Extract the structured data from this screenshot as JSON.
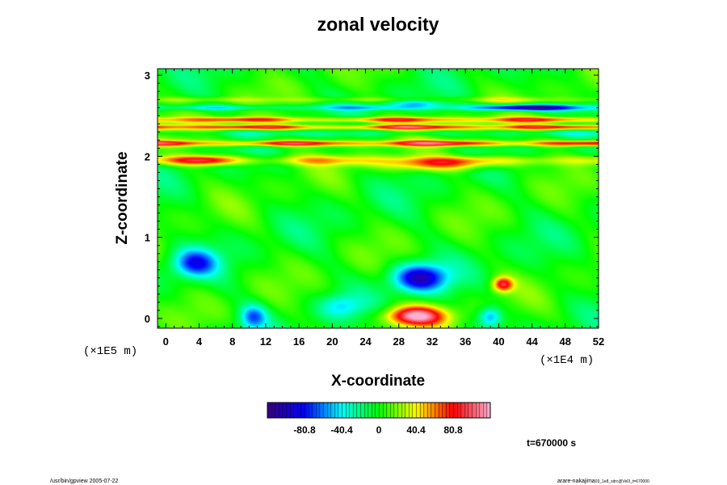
{
  "chart_data": {
    "type": "heatmap",
    "title": "zonal velocity",
    "xlabel": "X-coordinate",
    "ylabel": "Z-coordinate",
    "x_unit": "(×1E4 m)",
    "y_unit": "(×1E5 m)",
    "xlim": [
      -1,
      52
    ],
    "ylim": [
      -0.12,
      3.08
    ],
    "x_ticks": [
      0,
      4,
      8,
      12,
      16,
      20,
      24,
      28,
      32,
      36,
      40,
      44,
      48,
      52
    ],
    "y_ticks": [
      0,
      1,
      2,
      3
    ],
    "colorbar": {
      "range": [
        -121.2,
        121.2
      ],
      "ticks": [
        -80.8,
        -40.4,
        0,
        40.4,
        80.8
      ],
      "tick_labels": [
        "-80.8",
        "-40.4",
        "0",
        "40.4",
        "80.8"
      ]
    },
    "features": [
      {
        "kind": "blob",
        "x": 30,
        "z": 0.03,
        "rx": 3.5,
        "rz": 0.12,
        "value": 115
      },
      {
        "kind": "blob",
        "x": 30.5,
        "z": 0.5,
        "rx": 3.2,
        "rz": 0.17,
        "value": -95
      },
      {
        "kind": "blob",
        "x": 3.5,
        "z": 0.68,
        "rx": 2.6,
        "rz": 0.17,
        "value": -70
      },
      {
        "kind": "blob",
        "x": 10.5,
        "z": 0.02,
        "rx": 1.6,
        "rz": 0.15,
        "value": -60
      },
      {
        "kind": "blob",
        "x": 39,
        "z": 0.02,
        "rx": 1.4,
        "rz": 0.12,
        "value": -55
      },
      {
        "kind": "blob",
        "x": 40.5,
        "z": 0.42,
        "rx": 1.2,
        "rz": 0.09,
        "value": 85
      },
      {
        "kind": "blob",
        "x": 21,
        "z": 0.15,
        "rx": 2.5,
        "rz": 0.14,
        "value": -35
      },
      {
        "kind": "blob",
        "x": 44,
        "z": 2.6,
        "rx": 5.5,
        "rz": 0.04,
        "value": -90
      },
      {
        "kind": "blob",
        "x": 30,
        "z": 2.65,
        "rx": 3.5,
        "rz": 0.04,
        "value": -40
      },
      {
        "kind": "blob",
        "x": 33,
        "z": 1.9,
        "rx": 7,
        "rz": 0.08,
        "value": 55
      },
      {
        "kind": "blob",
        "x": 5,
        "z": 1.95,
        "rx": 4,
        "rz": 0.06,
        "value": 60
      }
    ],
    "bands": [
      {
        "z": 2.45,
        "dz": 0.035,
        "value": 80
      },
      {
        "z": 2.36,
        "dz": 0.03,
        "value": 95
      },
      {
        "z": 2.28,
        "dz": 0.025,
        "value": -20
      },
      {
        "z": 2.16,
        "dz": 0.035,
        "value": 100
      },
      {
        "z": 2.6,
        "dz": 0.03,
        "value": -45
      },
      {
        "z": 2.7,
        "dz": 0.03,
        "value": 25
      },
      {
        "z": 1.95,
        "dz": 0.06,
        "value": 45
      }
    ]
  },
  "annotations": {
    "time": "t=670000 s",
    "footer_left": "/usr/bin/gpview 2005-07-22",
    "footer_right": "arare-nakajima",
    "footer_right_sub": "03_1e8_sitrc@Vel3_t=670000"
  },
  "colors": {
    "colormap": [
      "#3a0080",
      "#0000ff",
      "#00ffff",
      "#00ff00",
      "#ffff00",
      "#ff0000",
      "#ffb0d0"
    ]
  }
}
